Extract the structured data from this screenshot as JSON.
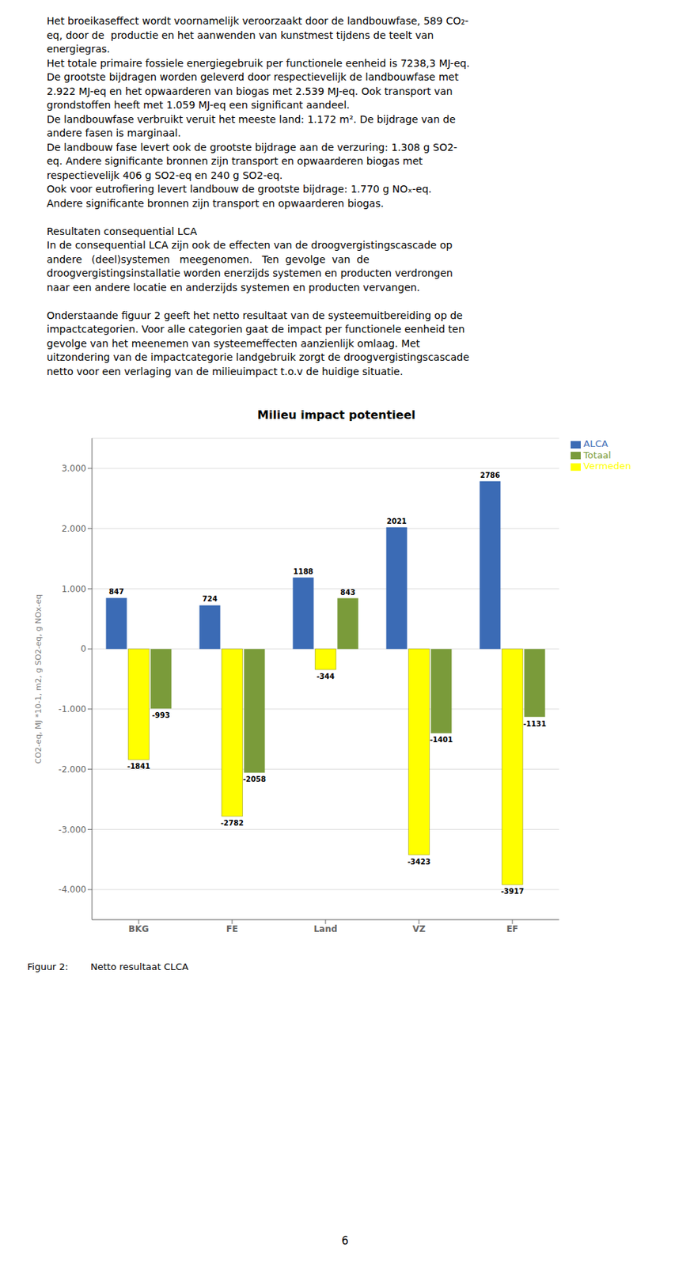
{
  "chart_data": {
    "type": "bar",
    "title": "Milieu impact potentieel",
    "categories": [
      "BKG",
      "FE",
      "Land",
      "VZ",
      "EF"
    ],
    "series": [
      {
        "name": "ALCA",
        "color": "#3B6BB5",
        "values": [
          847,
          724,
          1188,
          2021,
          2786
        ]
      },
      {
        "name": "Vermeden",
        "color": "#FFFF00",
        "values": [
          -1841,
          -2782,
          -344,
          -3423,
          -3917
        ]
      },
      {
        "name": "Totaal",
        "color": "#7A9B3A",
        "values": [
          -993,
          -2058,
          843,
          -1401,
          -1131
        ]
      }
    ],
    "ylabel": "CO2-eq, MJ *10-1, m2, g SO2-eq, g NOx-eq",
    "ylim": [
      -4500,
      3500
    ],
    "yticks": [
      {
        "value": -4000,
        "label": "-4.000"
      },
      {
        "value": -3000,
        "label": "-3.000"
      },
      {
        "value": -2000,
        "label": "-2.000"
      },
      {
        "value": -1000,
        "label": "-1.000"
      },
      0,
      {
        "value": 1000,
        "label": "1.000"
      },
      {
        "value": 2000,
        "label": "2.000"
      },
      {
        "value": 3000,
        "label": "3.000"
      }
    ],
    "grid": true,
    "legend": "right",
    "data_labels": true,
    "annotations": [
      "Het broeikaseffect wordt voornamelijk veroorzaakt door de landbouwfase, 589 CO₂-",
      "eq, door de  productie en het aanwenden van kunstmest tijdens de teelt van",
      "energiegras.",
      "Het totale primaire fossiele energiegebruik per functionele eenheid is 7238,3 MJ-eq.",
      "De grootste bijdragen worden geleverd door respectievelijk de landbouwfase met",
      "2.922 MJ-eq en het opwaarderen van biogas met 2.539 MJ-eq. Ook transport van",
      "grondstoffen heeft met 1.059 MJ-eq een significant aandeel.",
      "De landbouwfase verbruikt veruit het meeste land: 1.172 m². De bijdrage van de",
      "andere fasen is marginaal.",
      "De landbouw fase levert ook de grootste bijdrage aan de verzuring: 1.308 g SO2-",
      "eq. Andere significante bronnen zijn transport en opwaarderen biogas met",
      "respectievelijk 406 g SO2-eq en 240 g SO2-eq.",
      "Ook voor eutrofiering levert landbouw de grootste bijdrage: 1.770 g NOₓ-eq.",
      "Andere significante bronnen zijn transport en opwaarderen biogas.",
      "Resultaten consequential LCA",
      "In de consequential LCA zijn ook de effecten van de droogvergistingscascade op",
      "andere   (deel)systemen   meegenomen.   Ten  gevolge  van  de",
      "droogvergistingsinstallatie worden enerzijds systemen en producten verdrongen",
      "naar een andere locatie en anderzijds systemen en producten vervangen.",
      "Onderstaande figuur 2 geeft het netto resultaat van de systeemuitbereiding op de",
      "impactcategorien. Voor alle categorien gaat de impact per functionele eenheid ten",
      "gevolge van het meenemen van systeemeffecten aanzienlijk omlaag. Met",
      "uitzondering van de impactcategorie landgebruik zorgt de droogvergistingscascade",
      "netto voor een verlaging van de milieuimpact t.o.v de huidige situatie.",
      "Figuur 2:",
      "Netto resultaat CLCA",
      "6"
    ]
  }
}
